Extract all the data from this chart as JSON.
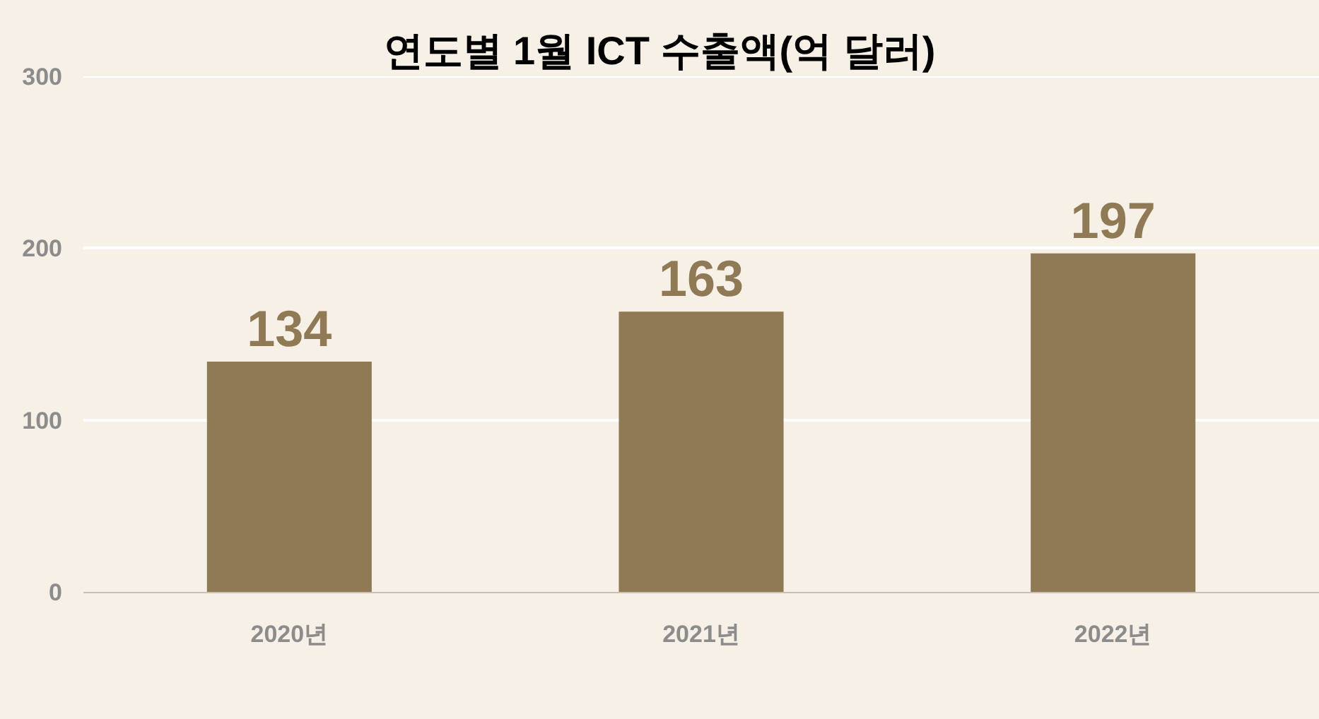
{
  "chart_data": {
    "type": "bar",
    "title": "연도별 1월 ICT 수출액(억 달러)",
    "categories": [
      "2020년",
      "2021년",
      "2022년"
    ],
    "values": [
      134,
      163,
      197
    ],
    "color": "#8f7a55",
    "ylim": [
      0,
      300
    ],
    "yticks": [
      0,
      100,
      200,
      300
    ],
    "grid": "y",
    "data_labels": true
  }
}
